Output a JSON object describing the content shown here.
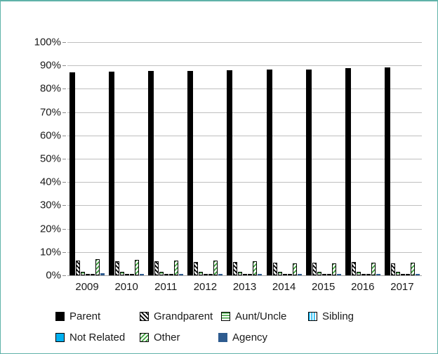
{
  "chart_data": {
    "type": "bar",
    "title": "",
    "xlabel": "",
    "ylabel": "",
    "categories": [
      "2009",
      "2010",
      "2011",
      "2012",
      "2013",
      "2014",
      "2015",
      "2016",
      "2017"
    ],
    "series": [
      {
        "name": "Parent",
        "pattern": "solid-black",
        "color": "#000000",
        "values": [
          87.0,
          87.3,
          87.7,
          87.7,
          88.0,
          88.4,
          88.4,
          88.9,
          89.3
        ]
      },
      {
        "name": "Grandparent",
        "pattern": "diag-black",
        "color": "#000000",
        "values": [
          6.3,
          6.1,
          6.0,
          5.8,
          5.6,
          5.4,
          5.5,
          5.6,
          5.2
        ]
      },
      {
        "name": "Aunt/Uncle",
        "pattern": "hlines-green",
        "color": "#3DA33C",
        "values": [
          1.6,
          1.5,
          1.5,
          1.4,
          1.4,
          1.4,
          1.4,
          1.5,
          1.4
        ]
      },
      {
        "name": "Sibling",
        "pattern": "vlines-cyan",
        "color": "#00B0F0",
        "values": [
          0.4,
          0.4,
          0.4,
          0.4,
          0.3,
          0.3,
          0.3,
          0.4,
          0.4
        ]
      },
      {
        "name": "Not Related",
        "pattern": "solid-cyan",
        "color": "#00B0F0",
        "values": [
          0.5,
          0.5,
          0.5,
          0.4,
          0.4,
          0.4,
          0.4,
          0.5,
          0.5
        ]
      },
      {
        "name": "Other",
        "pattern": "diag-green",
        "color": "#3DA33C",
        "values": [
          6.8,
          6.7,
          6.4,
          6.2,
          6.0,
          5.2,
          5.2,
          5.4,
          5.4
        ]
      },
      {
        "name": "Agency",
        "pattern": "solid-darkblue",
        "color": "#2E5B8F",
        "values": [
          0.8,
          0.7,
          0.7,
          0.7,
          0.6,
          0.6,
          0.6,
          0.7,
          0.7
        ]
      }
    ],
    "y_ticks": [
      "100%",
      "90%",
      "80%",
      "70%",
      "60%",
      "50%",
      "40%",
      "30%",
      "20%",
      "10%",
      "0%"
    ],
    "ylim": [
      0,
      100
    ],
    "grid": true,
    "legend_position": "bottom",
    "frame_border_color": "#5FB2A9",
    "gridline_color": "#BFBFBF"
  }
}
